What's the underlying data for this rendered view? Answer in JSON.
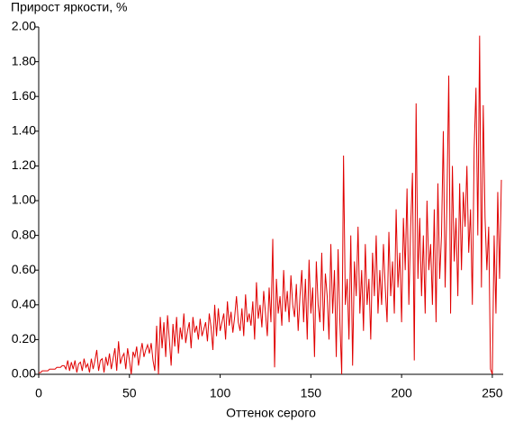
{
  "chart_data": {
    "type": "line",
    "title": "Прирост яркости, %",
    "xlabel": "Оттенок серого",
    "color": "#e00000",
    "x": [
      0,
      1,
      2,
      3,
      4,
      5,
      6,
      7,
      8,
      9,
      10,
      11,
      12,
      13,
      14,
      15,
      16,
      17,
      18,
      19,
      20,
      21,
      22,
      23,
      24,
      25,
      26,
      27,
      28,
      29,
      30,
      31,
      32,
      33,
      34,
      35,
      36,
      37,
      38,
      39,
      40,
      41,
      42,
      43,
      44,
      45,
      46,
      47,
      48,
      49,
      50,
      51,
      52,
      53,
      54,
      55,
      56,
      57,
      58,
      59,
      60,
      61,
      62,
      63,
      64,
      65,
      66,
      67,
      68,
      69,
      70,
      71,
      72,
      73,
      74,
      75,
      76,
      77,
      78,
      79,
      80,
      81,
      82,
      83,
      84,
      85,
      86,
      87,
      88,
      89,
      90,
      91,
      92,
      93,
      94,
      95,
      96,
      97,
      98,
      99,
      100,
      101,
      102,
      103,
      104,
      105,
      106,
      107,
      108,
      109,
      110,
      111,
      112,
      113,
      114,
      115,
      116,
      117,
      118,
      119,
      120,
      121,
      122,
      123,
      124,
      125,
      126,
      127,
      128,
      129,
      130,
      131,
      132,
      133,
      134,
      135,
      136,
      137,
      138,
      139,
      140,
      141,
      142,
      143,
      144,
      145,
      146,
      147,
      148,
      149,
      150,
      151,
      152,
      153,
      154,
      155,
      156,
      157,
      158,
      159,
      160,
      161,
      162,
      163,
      164,
      165,
      166,
      167,
      168,
      169,
      170,
      171,
      172,
      173,
      174,
      175,
      176,
      177,
      178,
      179,
      180,
      181,
      182,
      183,
      184,
      185,
      186,
      187,
      188,
      189,
      190,
      191,
      192,
      193,
      194,
      195,
      196,
      197,
      198,
      199,
      200,
      201,
      202,
      203,
      204,
      205,
      206,
      207,
      208,
      209,
      210,
      211,
      212,
      213,
      214,
      215,
      216,
      217,
      218,
      219,
      220,
      221,
      222,
      223,
      224,
      225,
      226,
      227,
      228,
      229,
      230,
      231,
      232,
      233,
      234,
      235,
      236,
      237,
      238,
      239,
      240,
      241,
      242,
      243,
      244,
      245,
      246,
      247,
      248,
      249,
      250,
      251,
      252,
      253,
      254,
      255
    ],
    "values": [
      0.01,
      0.01,
      0.02,
      0.02,
      0.02,
      0.02,
      0.03,
      0.03,
      0.03,
      0.03,
      0.04,
      0.04,
      0.04,
      0.05,
      0.05,
      0.03,
      0.08,
      0.02,
      0.07,
      0.03,
      0.08,
      0.01,
      0.06,
      0.07,
      0.02,
      0.09,
      0.04,
      0.06,
      0.01,
      0.09,
      0.03,
      0.08,
      0.14,
      0.02,
      0.08,
      0.09,
      0.01,
      0.1,
      0.05,
      0.12,
      0.03,
      0.09,
      0.15,
      0.02,
      0.19,
      0.06,
      0.1,
      0.12,
      0.03,
      0.15,
      0.08,
      0.0,
      0.13,
      0.1,
      0.16,
      0.05,
      0.12,
      0.18,
      0.1,
      0.14,
      0.17,
      0.12,
      0.18,
      0.08,
      0.02,
      0.28,
      0.0,
      0.33,
      0.15,
      0.3,
      0.1,
      0.34,
      0.2,
      0.05,
      0.29,
      0.16,
      0.33,
      0.12,
      0.27,
      0.2,
      0.35,
      0.18,
      0.25,
      0.3,
      0.15,
      0.33,
      0.24,
      0.28,
      0.2,
      0.32,
      0.22,
      0.26,
      0.3,
      0.19,
      0.35,
      0.27,
      0.14,
      0.4,
      0.22,
      0.38,
      0.25,
      0.3,
      0.35,
      0.2,
      0.42,
      0.28,
      0.36,
      0.24,
      0.33,
      0.45,
      0.3,
      0.25,
      0.38,
      0.22,
      0.46,
      0.3,
      0.35,
      0.28,
      0.42,
      0.2,
      0.53,
      0.32,
      0.4,
      0.27,
      0.48,
      0.35,
      0.22,
      0.5,
      0.3,
      0.78,
      0.04,
      0.55,
      0.35,
      0.45,
      0.28,
      0.6,
      0.36,
      0.48,
      0.3,
      0.57,
      0.4,
      0.33,
      0.52,
      0.25,
      0.45,
      0.6,
      0.3,
      0.55,
      0.2,
      0.66,
      0.35,
      0.5,
      0.1,
      0.65,
      0.4,
      0.3,
      0.7,
      0.25,
      0.58,
      0.45,
      0.2,
      0.75,
      0.35,
      0.6,
      0.1,
      0.72,
      0.3,
      0.0,
      1.26,
      0.4,
      0.55,
      0.2,
      0.8,
      0.05,
      0.65,
      0.45,
      0.85,
      0.35,
      0.6,
      0.25,
      0.75,
      0.4,
      0.55,
      0.2,
      0.7,
      0.45,
      0.8,
      0.35,
      0.6,
      0.4,
      0.75,
      0.5,
      0.3,
      0.82,
      0.45,
      0.65,
      0.35,
      0.95,
      0.5,
      0.7,
      0.3,
      0.9,
      0.6,
      1.07,
      0.4,
      0.85,
      1.16,
      0.08,
      1.56,
      0.55,
      0.9,
      0.45,
      0.8,
      0.35,
      1.0,
      0.6,
      0.75,
      0.4,
      0.95,
      0.3,
      1.1,
      0.55,
      0.8,
      1.4,
      0.5,
      1.0,
      1.72,
      0.35,
      1.2,
      0.65,
      0.9,
      0.45,
      1.1,
      0.6,
      1.05,
      0.85,
      1.2,
      0.7,
      0.95,
      0.4,
      1.3,
      1.65,
      0.8,
      1.95,
      0.5,
      1.55,
      0.9,
      0.6,
      0.85,
      0.03,
      0.0,
      0.8,
      0.35,
      1.05,
      0.55,
      1.12
    ],
    "xlim": [
      0,
      256
    ],
    "xticks": [
      0,
      50,
      100,
      150,
      200,
      250
    ],
    "ylim": [
      0,
      2
    ],
    "yticks": [
      {
        "value": 0,
        "label": "0.00"
      },
      {
        "value": 0.2,
        "label": "0.20"
      },
      {
        "value": 0.4,
        "label": "0.40"
      },
      {
        "value": 0.6,
        "label": "0.60"
      },
      {
        "value": 0.8,
        "label": "0.80"
      },
      {
        "value": 1,
        "label": "1.00"
      },
      {
        "value": 1.2,
        "label": "1.20"
      },
      {
        "value": 1.4,
        "label": "1.40"
      },
      {
        "value": 1.6,
        "label": "1.60"
      },
      {
        "value": 1.8,
        "label": "1.80"
      },
      {
        "value": 2,
        "label": "2.00"
      }
    ]
  }
}
